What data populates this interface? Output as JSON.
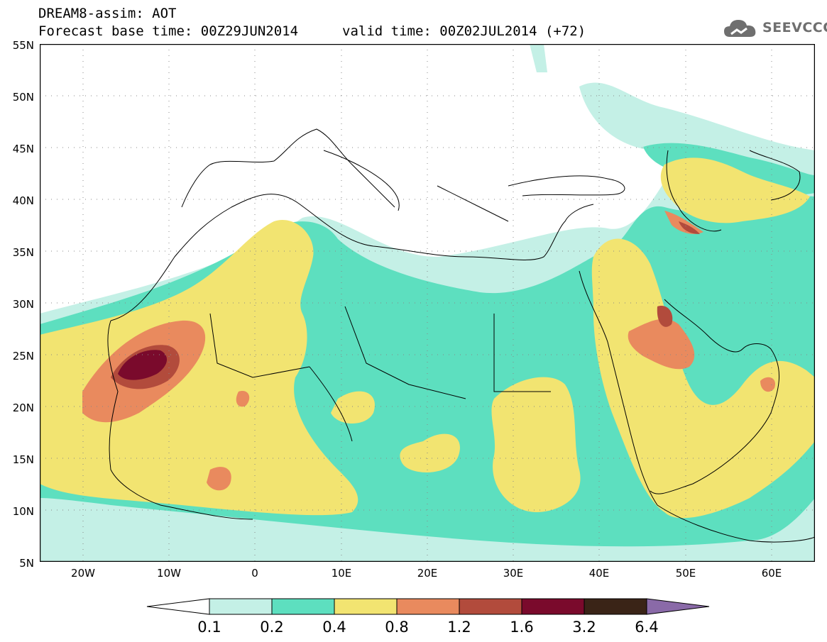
{
  "header": {
    "title": "DREAM8-assim: AOT",
    "base_time": "Forecast base time: 00Z29JUN2014",
    "valid_time": "valid time: 00Z02JUL2014 (+72)"
  },
  "logo": {
    "text": "SEEVCCC",
    "icon": "cloud-icon",
    "color": "#6f6f6f"
  },
  "map": {
    "lon_range": [
      -25,
      65
    ],
    "lat_range": [
      5,
      55
    ],
    "y_axis_labels": [
      "55N",
      "50N",
      "45N",
      "40N",
      "35N",
      "30N",
      "25N",
      "20N",
      "15N",
      "10N",
      "5N"
    ],
    "x_axis_labels": [
      "20W",
      "10W",
      "0",
      "10E",
      "20E",
      "30E",
      "40E",
      "50E",
      "60E"
    ],
    "gridlines": "dotted"
  },
  "colorbar": {
    "labels": [
      "0.1",
      "0.2",
      "0.4",
      "0.8",
      "1.2",
      "1.6",
      "3.2",
      "6.4"
    ],
    "colors": [
      "#ffffff",
      "#c4f0e6",
      "#5ddfbf",
      "#f2e471",
      "#e98a5e",
      "#b24b3c",
      "#7a0a2c",
      "#3a2417",
      "#8a6aa8"
    ]
  }
}
